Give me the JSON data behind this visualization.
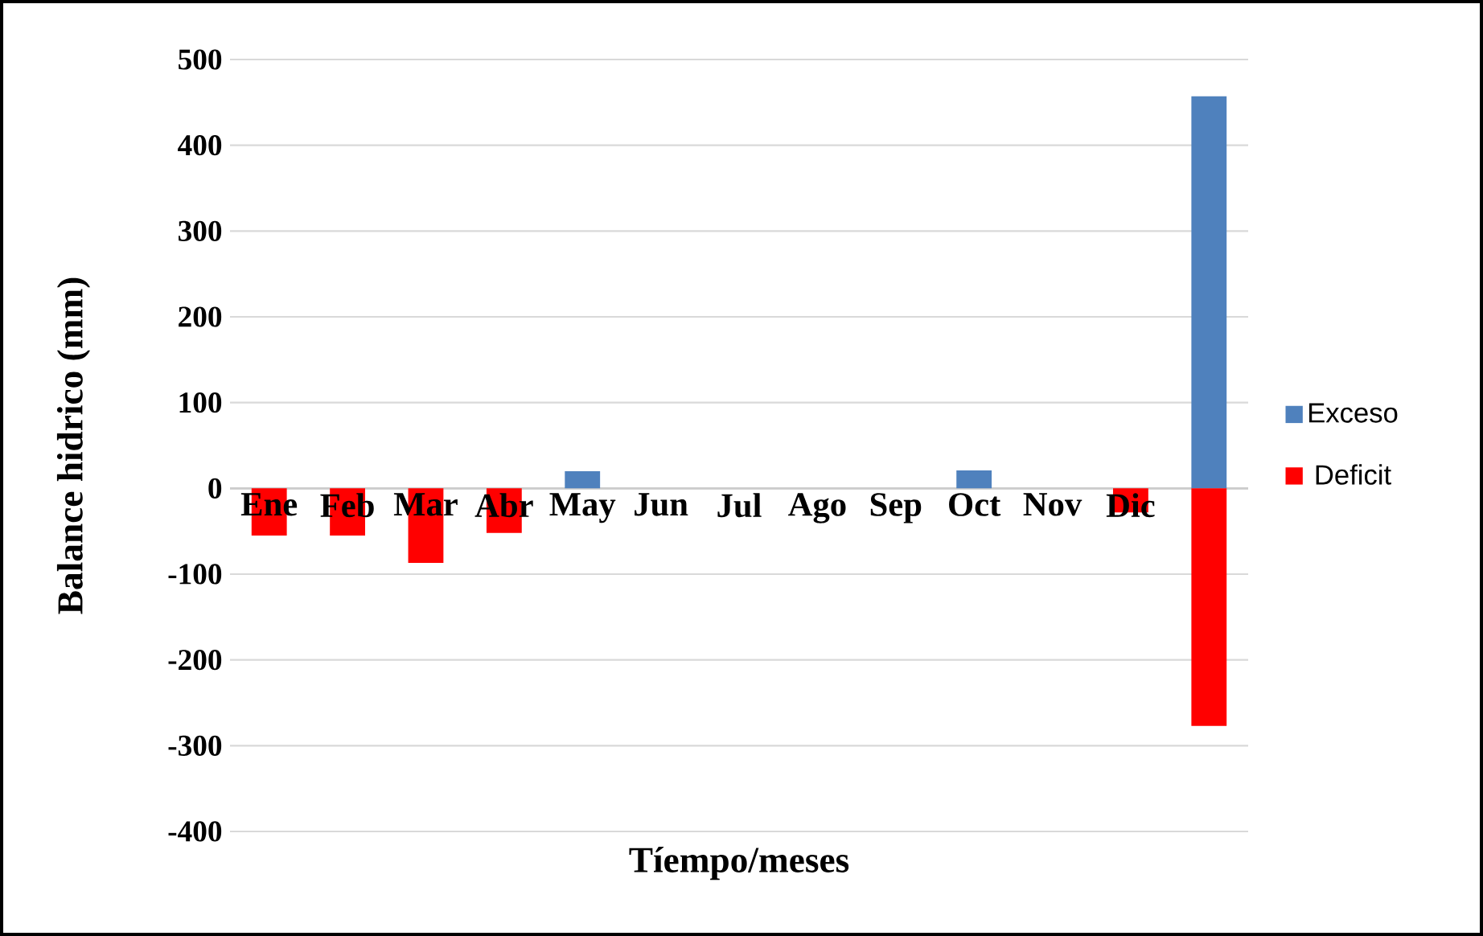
{
  "chart_data": {
    "type": "bar",
    "xlabel": "Tíempo/meses",
    "ylabel": "Balance hidrico (mm)",
    "categories": [
      "Ene",
      "Feb",
      "Mar",
      "Abr",
      "May",
      "Jun",
      "Jul",
      "Ago",
      "Sep",
      "Oct",
      "Nov",
      "Dic",
      null
    ],
    "series": [
      {
        "name": "Exceso",
        "color": "#4f81bd",
        "values": [
          0,
          0,
          0,
          0,
          20,
          0,
          0,
          0,
          0,
          21,
          0,
          0,
          457
        ]
      },
      {
        "name": "Deficit",
        "color": "#ff0000",
        "values": [
          -55,
          -55,
          -87,
          -52,
          0,
          0,
          0,
          0,
          0,
          0,
          0,
          -28,
          -277
        ]
      }
    ],
    "stacked": true,
    "ylim": [
      -400,
      500
    ],
    "yticks": [
      -400,
      -300,
      -200,
      -100,
      0,
      100,
      200,
      300,
      400,
      500
    ],
    "grid": "y",
    "legend": "right"
  }
}
